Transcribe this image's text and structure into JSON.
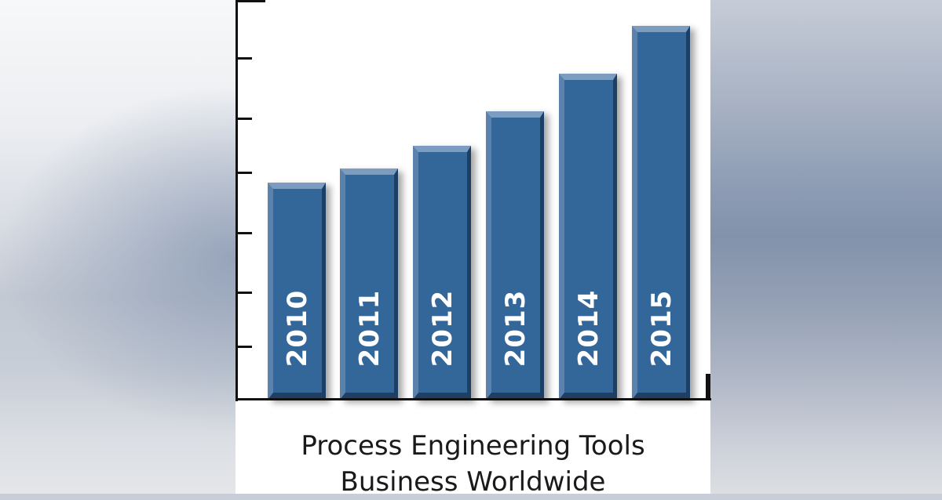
{
  "chart_data": {
    "type": "bar",
    "title": "Process Engineering Tools Business Worldwide",
    "title_lines": [
      "Process Engineering Tools",
      "Business Worldwide"
    ],
    "categories": [
      "2010",
      "2011",
      "2012",
      "2013",
      "2014",
      "2015"
    ],
    "values": [
      3.8,
      4.05,
      4.45,
      5.05,
      5.7,
      6.55
    ],
    "value_units": "relative (tick intervals; no numeric axis labels shown)",
    "xlabel": "",
    "ylabel": "",
    "ylim": [
      0,
      7
    ],
    "y_ticks_count": 7,
    "y_tick_labels_shown": false,
    "grid": false,
    "legend": null,
    "bar_color": "#336699",
    "category_labels_inside_bars": true
  }
}
